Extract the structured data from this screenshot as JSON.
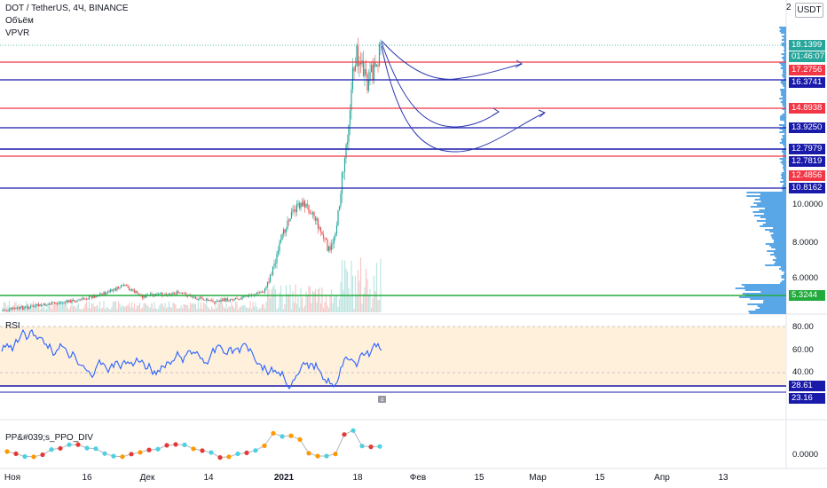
{
  "chart": {
    "title": "DOT / TetherUS, 4Ч, BINANCE",
    "volume_label": "Объём",
    "vpvr_label": "VPVR",
    "currency": "USDT",
    "top_scale_digit": "2",
    "countdown": "01:46:07"
  },
  "colors": {
    "red_line": "#f23645",
    "blue_line": "#1a1aaa",
    "green_line": "#22ab3c",
    "last_price": "#26a69a",
    "candle_up": "#26a69a",
    "candle_down": "#ef5350",
    "vpvr": "#5aa7e8",
    "rsi_line": "#2962ff",
    "rsi_band": "#fff0dc",
    "ppo_line": "#b2b5be"
  },
  "price_scale": {
    "ticks": [
      "10.0000",
      "8.0000",
      "6.0000"
    ],
    "levels": [
      {
        "value": "18.1399",
        "kind": "last"
      },
      {
        "value": "17.2756",
        "kind": "red"
      },
      {
        "value": "16.3741",
        "kind": "blue"
      },
      {
        "value": "14.8938",
        "kind": "red"
      },
      {
        "value": "13.9250",
        "kind": "blue"
      },
      {
        "value": "12.7979",
        "kind": "blue"
      },
      {
        "value": "12.7819",
        "kind": "blue"
      },
      {
        "value": "12.4856",
        "kind": "red"
      },
      {
        "value": "10.8162",
        "kind": "blue"
      },
      {
        "value": "5.3244",
        "kind": "green"
      }
    ]
  },
  "rsi": {
    "label": "RSI",
    "ticks": [
      "80.00",
      "60.00",
      "40.00"
    ],
    "levels": [
      "28.61",
      "23.16"
    ]
  },
  "ppo": {
    "label": "PP&#039;s_PPO_DIV",
    "tick": "0.0000"
  },
  "time_axis": {
    "labels": [
      {
        "text": "Ноя",
        "bold": false
      },
      {
        "text": "16",
        "bold": false
      },
      {
        "text": "Дек",
        "bold": false
      },
      {
        "text": "14",
        "bold": false
      },
      {
        "text": "2021",
        "bold": true
      },
      {
        "text": "18",
        "bold": false
      },
      {
        "text": "Фев",
        "bold": false
      },
      {
        "text": "15",
        "bold": false
      },
      {
        "text": "Мар",
        "bold": false
      },
      {
        "text": "15",
        "bold": false
      },
      {
        "text": "Апр",
        "bold": false
      },
      {
        "text": "13",
        "bold": false
      }
    ]
  }
}
